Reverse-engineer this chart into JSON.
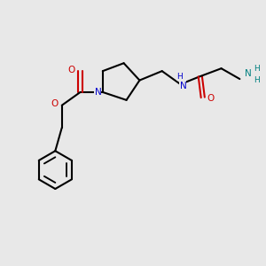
{
  "bg_color": "#e8e8e8",
  "bond_color": "#000000",
  "N_color": "#0000cc",
  "O_color": "#cc0000",
  "NH2_color": "#008080",
  "line_width": 1.5,
  "figsize": [
    3.0,
    3.0
  ],
  "dpi": 100,
  "xlim": [
    0,
    10
  ],
  "ylim": [
    0,
    10
  ]
}
